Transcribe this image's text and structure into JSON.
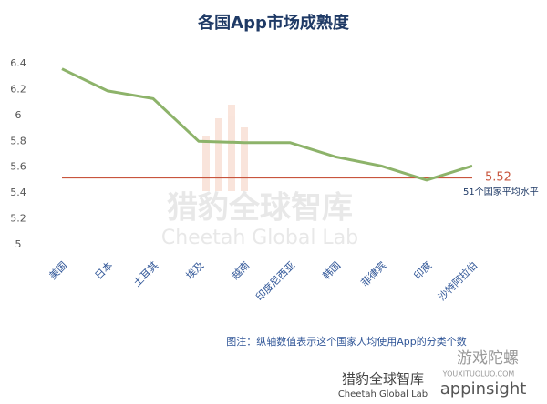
{
  "chart_data": {
    "type": "line",
    "title": "各国App市场成熟度",
    "categories": [
      "美国",
      "日本",
      "土耳其",
      "埃及",
      "越南",
      "印度尼西亚",
      "韩国",
      "菲律宾",
      "印度",
      "沙特阿拉伯"
    ],
    "series": [
      {
        "name": "App市场成熟度",
        "color": "#8db36a",
        "values": [
          6.36,
          6.19,
          6.13,
          5.8,
          5.79,
          5.79,
          5.68,
          5.61,
          5.5,
          5.61
        ]
      }
    ],
    "ylim": [
      5,
      6.4
    ],
    "yticks": [
      5,
      5.2,
      5.4,
      5.6,
      5.8,
      6,
      6.2,
      6.4
    ],
    "grid": false,
    "reference_line": {
      "value": 5.52,
      "note": "51个国家平均水平",
      "color": "#c8553d"
    },
    "footnote": "图注：纵轴数值表示这个国家人均使用App的分类个数",
    "watermarks": [
      "猎豹全球智库",
      "Cheetah Global Lab",
      "游戏陀螺",
      "YOUXITUOLUO.COM",
      "appinsight"
    ]
  }
}
